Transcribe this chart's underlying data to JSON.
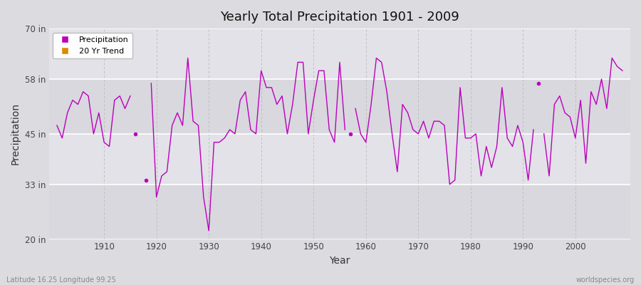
{
  "title": "Yearly Total Precipitation 1901 - 2009",
  "xlabel": "Year",
  "ylabel": "Precipitation",
  "bg_outer_color": "#dcdce0",
  "bg_inner_color": "#dcdce0",
  "line_color": "#bb00bb",
  "ylim": [
    20,
    70
  ],
  "yticks": [
    20,
    33,
    45,
    58,
    70
  ],
  "ytick_labels": [
    "20 in",
    "33 in",
    "45 in",
    "58 in",
    "70 in"
  ],
  "xlim": [
    1899.5,
    2010.5
  ],
  "xticks": [
    1910,
    1920,
    1930,
    1940,
    1950,
    1960,
    1970,
    1980,
    1990,
    2000
  ],
  "footer_left": "Latitude 16.25 Longitude 99.25",
  "footer_right": "worldspecies.org",
  "legend_entries": [
    "Precipitation",
    "20 Yr Trend"
  ],
  "legend_colors": [
    "#bb00bb",
    "#dd8800"
  ],
  "years": [
    1901,
    1902,
    1903,
    1904,
    1905,
    1906,
    1907,
    1908,
    1909,
    1910,
    1911,
    1912,
    1913,
    1914,
    1915,
    1916,
    1917,
    1918,
    1919,
    1920,
    1921,
    1922,
    1923,
    1924,
    1925,
    1926,
    1927,
    1928,
    1929,
    1930,
    1931,
    1932,
    1933,
    1934,
    1935,
    1936,
    1937,
    1938,
    1939,
    1940,
    1941,
    1942,
    1943,
    1944,
    1945,
    1946,
    1947,
    1948,
    1949,
    1950,
    1951,
    1952,
    1953,
    1954,
    1955,
    1956,
    1957,
    1958,
    1959,
    1960,
    1961,
    1962,
    1963,
    1964,
    1965,
    1966,
    1967,
    1968,
    1969,
    1970,
    1971,
    1972,
    1973,
    1974,
    1975,
    1976,
    1977,
    1978,
    1979,
    1980,
    1981,
    1982,
    1983,
    1984,
    1985,
    1986,
    1987,
    1988,
    1989,
    1990,
    1991,
    1992,
    1993,
    1994,
    1995,
    1996,
    1997,
    1998,
    1999,
    2000,
    2001,
    2002,
    2003,
    2004,
    2005,
    2006,
    2007,
    2008,
    2009
  ],
  "values": [
    47,
    44,
    50,
    53,
    52,
    55,
    54,
    45,
    50,
    43,
    42,
    53,
    54,
    51,
    54,
    999,
    46,
    999,
    57,
    30,
    35,
    36,
    47,
    50,
    47,
    63,
    48,
    47,
    30,
    22,
    43,
    43,
    44,
    46,
    45,
    53,
    55,
    46,
    45,
    60,
    56,
    56,
    52,
    54,
    45,
    52,
    62,
    62,
    45,
    53,
    60,
    60,
    46,
    43,
    62,
    46,
    999,
    51,
    45,
    43,
    52,
    63,
    62,
    55,
    45,
    36,
    52,
    50,
    46,
    45,
    48,
    44,
    48,
    48,
    47,
    33,
    34,
    56,
    44,
    44,
    45,
    35,
    42,
    37,
    42,
    56,
    44,
    42,
    47,
    43,
    34,
    46,
    999,
    45,
    35,
    52,
    54,
    50,
    49,
    44,
    53,
    38,
    55,
    52,
    58,
    51,
    63,
    61,
    60
  ],
  "isolated": {
    "1916": 45,
    "1918": 34,
    "1957": 45,
    "1993": 57
  }
}
